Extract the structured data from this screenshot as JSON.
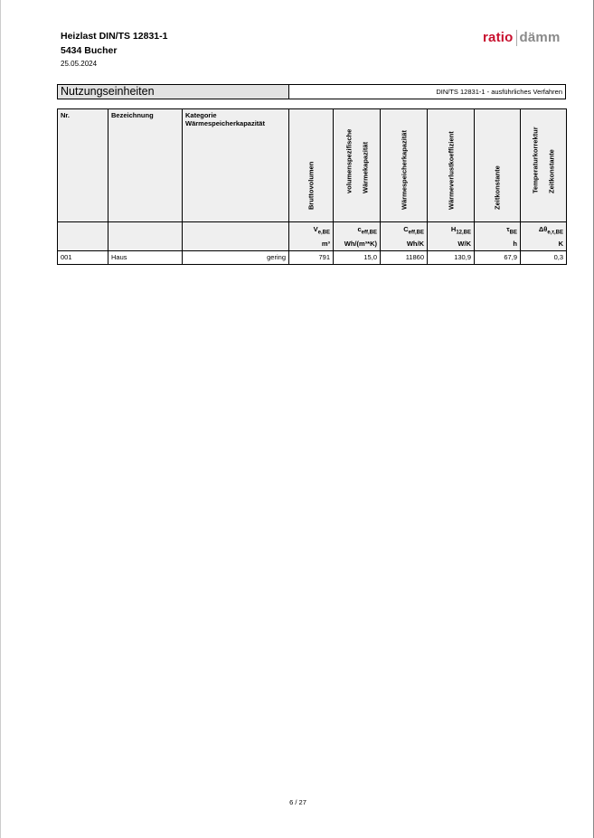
{
  "header": {
    "title": "Heizlast DIN/TS 12831-1",
    "project": "5434 Bucher",
    "date": "25.05.2024",
    "logo_left": "ratio",
    "logo_right": "dämm"
  },
  "section": {
    "title": "Nutzungseinheiten",
    "method": "DIN/TS 12831-1 - ausführliches Verfahren"
  },
  "table": {
    "headers": [
      "Nr.",
      "Bezeichnung",
      "Kategorie Wärmespeicherkapazität",
      "Bruttovolumen",
      "volumenspezifische Wärmekapazität",
      "Wärmespeicherkapazität",
      "Wärmeverlustkoeffizient",
      "Zeitkonstante",
      "Temperaturkorrektur Zeitkonstante"
    ],
    "headers_split": {
      "kat1": "Kategorie",
      "kat2": "Wärmespeicherkapazität",
      "vol1": "volumenspezifische",
      "vol2": "Wärmekapazität",
      "temp1": "Temperaturkorrektur",
      "temp2": "Zeitkonstante"
    },
    "symbols": [
      {
        "main": "V",
        "sub": "e,BE"
      },
      {
        "main": "c",
        "sub": "eff,BE"
      },
      {
        "main": "C",
        "sub": "eff,BE"
      },
      {
        "main": "H",
        "sub": "12,BE"
      },
      {
        "main": "τ",
        "sub": "BE"
      },
      {
        "main": "Δθ",
        "sub": "e,τ,BE"
      }
    ],
    "units": [
      "m³",
      "Wh/(m³*K)",
      "Wh/K",
      "W/K",
      "h",
      "K"
    ],
    "rows": [
      {
        "nr": "001",
        "bez": "Haus",
        "kat": "gering",
        "v": "791",
        "c": "15,0",
        "C": "11860",
        "H": "130,9",
        "tau": "67,9",
        "dt": "0,3"
      }
    ]
  },
  "footer": {
    "page": "6 / 27"
  }
}
